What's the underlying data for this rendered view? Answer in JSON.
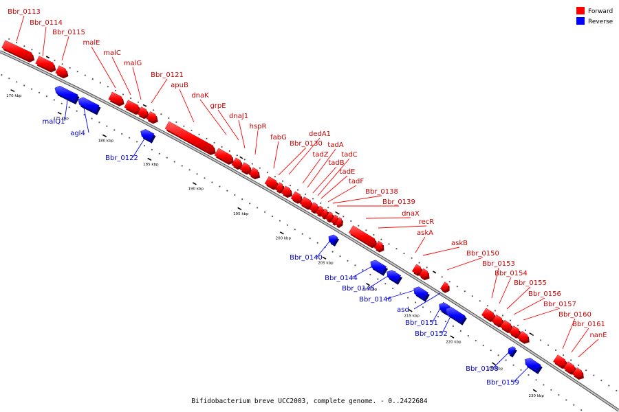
{
  "caption": "Bifidobacterium breve UCC2003, complete genome. - 0..2422684",
  "legend": [
    {
      "label": "Forward",
      "color": "#ff0000"
    },
    {
      "label": "Reverse",
      "color": "#0000ff"
    }
  ],
  "colors": {
    "forward": "#ff0000",
    "reverse": "#0000ff",
    "backbone": "#808080"
  },
  "scale_labels": [
    "170 kbp",
    "175 kbp",
    "180 kbp",
    "185 kbp",
    "190 kbp",
    "195 kbp",
    "200 kbp",
    "205 kbp",
    "210 kbp",
    "215 kbp",
    "220 kbp",
    "225 kbp",
    "230 kbp"
  ],
  "forward_genes": [
    "Bbr_0113",
    "Bbr_0114",
    "Bbr_0115",
    "malE",
    "malC",
    "malG",
    "Bbr_0121",
    "apuB",
    "dnaK",
    "grpE",
    "dnaJ1",
    "hspR",
    "fabG",
    "Bbr_0130",
    "dedA1",
    "tadZ",
    "tadA",
    "tadB",
    "tadC",
    "tadE",
    "tadF",
    "Bbr_0138",
    "Bbr_0139",
    "dnaX",
    "recR",
    "askA",
    "askB",
    "Bbr_0150",
    "Bbr_0153",
    "Bbr_0154",
    "Bbr_0155",
    "Bbr_0156",
    "Bbr_0157",
    "Bbr_0160",
    "Bbr_0161",
    "nanE"
  ],
  "reverse_genes": [
    "malQ1",
    "agl4",
    "Bbr_0122",
    "Bbr_0140",
    "Bbr_0144",
    "Bbr_0145",
    "Bbr_0146",
    "asd",
    "Bbr_0151",
    "Bbr_0152",
    "Bbr_0158",
    "Bbr_0159"
  ]
}
